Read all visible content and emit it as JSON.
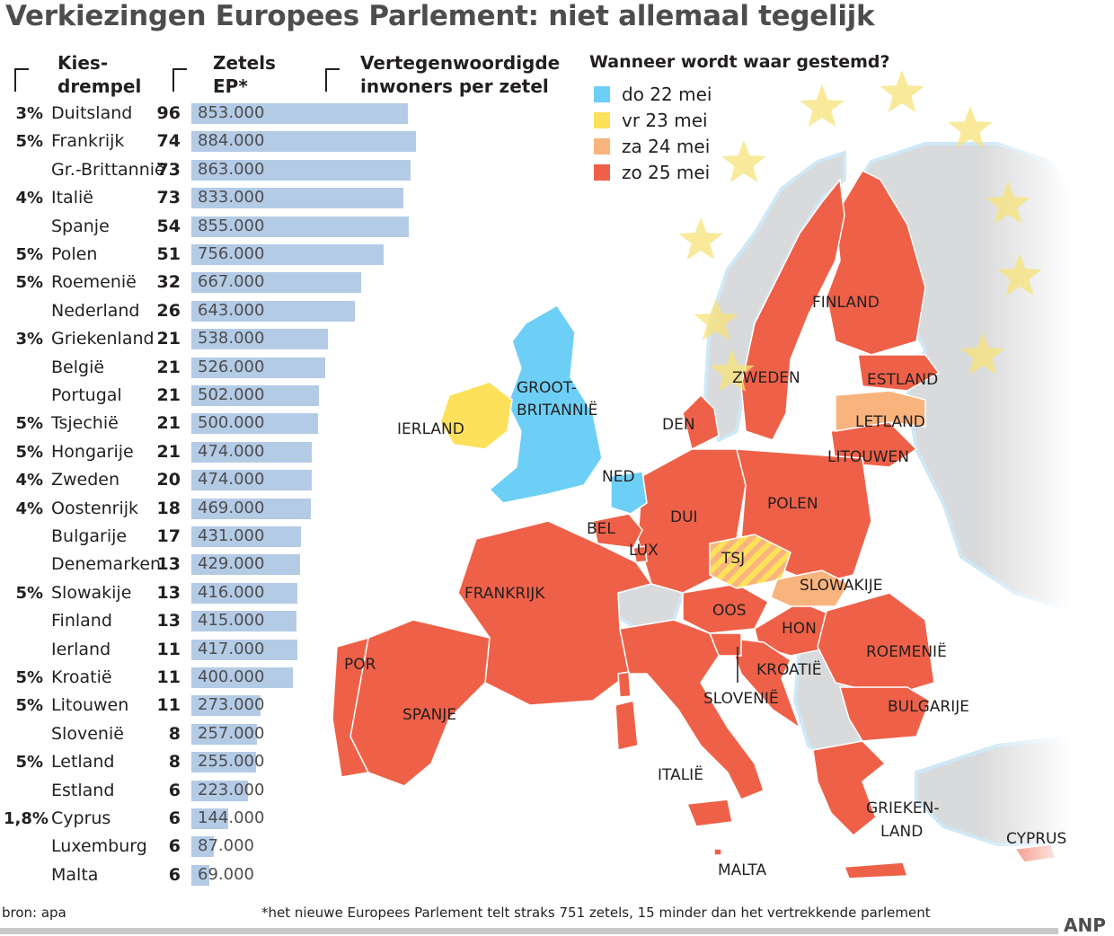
{
  "title": "Verkiezingen Europees Parlement: niet allemaal tegelijk",
  "headers": {
    "threshold": [
      "Kies-",
      "drempel"
    ],
    "seats": [
      "Zetels",
      "EP*"
    ],
    "inhabitants": [
      "Vertegenwoordigde",
      "inwoners per zetel"
    ]
  },
  "legend": {
    "title": "Wanneer wordt waar gestemd?",
    "items": [
      {
        "label": "do 22 mei",
        "color": "#6dcff6"
      },
      {
        "label": "vr  23 mei",
        "color": "#fde15b"
      },
      {
        "label": "za 24 mei",
        "color": "#f9b47e"
      },
      {
        "label": "zo 25 mei",
        "color": "#ee6148"
      }
    ]
  },
  "chart_data": {
    "type": "bar",
    "orientation": "horizontal",
    "title": "Verkiezingen Europees Parlement: niet allemaal tegelijk",
    "xlim": [
      0,
      884000
    ],
    "rows": [
      {
        "threshold": "3%",
        "country": "Duitsland",
        "seats": 96,
        "inhabitants": 853000,
        "label": "853.000"
      },
      {
        "threshold": "5%",
        "country": "Frankrijk",
        "seats": 74,
        "inhabitants": 884000,
        "label": "884.000"
      },
      {
        "threshold": "",
        "country": "Gr.-Brittannië",
        "seats": 73,
        "inhabitants": 863000,
        "label": "863.000"
      },
      {
        "threshold": "4%",
        "country": "Italië",
        "seats": 73,
        "inhabitants": 833000,
        "label": "833.000"
      },
      {
        "threshold": "",
        "country": "Spanje",
        "seats": 54,
        "inhabitants": 855000,
        "label": "855.000"
      },
      {
        "threshold": "5%",
        "country": "Polen",
        "seats": 51,
        "inhabitants": 756000,
        "label": "756.000"
      },
      {
        "threshold": "5%",
        "country": "Roemenië",
        "seats": 32,
        "inhabitants": 667000,
        "label": "667.000"
      },
      {
        "threshold": "",
        "country": "Nederland",
        "seats": 26,
        "inhabitants": 643000,
        "label": "643.000"
      },
      {
        "threshold": "3%",
        "country": "Griekenland",
        "seats": 21,
        "inhabitants": 538000,
        "label": "538.000"
      },
      {
        "threshold": "",
        "country": "België",
        "seats": 21,
        "inhabitants": 526000,
        "label": "526.000"
      },
      {
        "threshold": "",
        "country": "Portugal",
        "seats": 21,
        "inhabitants": 502000,
        "label": "502.000"
      },
      {
        "threshold": "5%",
        "country": "Tsjechië",
        "seats": 21,
        "inhabitants": 500000,
        "label": "500.000"
      },
      {
        "threshold": "5%",
        "country": "Hongarije",
        "seats": 21,
        "inhabitants": 474000,
        "label": "474.000"
      },
      {
        "threshold": "4%",
        "country": "Zweden",
        "seats": 20,
        "inhabitants": 474000,
        "label": "474.000"
      },
      {
        "threshold": "4%",
        "country": "Oostenrijk",
        "seats": 18,
        "inhabitants": 469000,
        "label": "469.000"
      },
      {
        "threshold": "",
        "country": "Bulgarije",
        "seats": 17,
        "inhabitants": 431000,
        "label": "431.000"
      },
      {
        "threshold": "",
        "country": "Denemarken",
        "seats": 13,
        "inhabitants": 429000,
        "label": "429.000"
      },
      {
        "threshold": "5%",
        "country": "Slowakije",
        "seats": 13,
        "inhabitants": 416000,
        "label": "416.000"
      },
      {
        "threshold": "",
        "country": "Finland",
        "seats": 13,
        "inhabitants": 415000,
        "label": "415.000"
      },
      {
        "threshold": "",
        "country": "Ierland",
        "seats": 11,
        "inhabitants": 417000,
        "label": "417.000"
      },
      {
        "threshold": "5%",
        "country": "Kroatië",
        "seats": 11,
        "inhabitants": 400000,
        "label": "400.000"
      },
      {
        "threshold": "5%",
        "country": "Litouwen",
        "seats": 11,
        "inhabitants": 273000,
        "label": "273.000"
      },
      {
        "threshold": "",
        "country": "Slovenië",
        "seats": 8,
        "inhabitants": 257000,
        "label": "257.000"
      },
      {
        "threshold": "5%",
        "country": "Letland",
        "seats": 8,
        "inhabitants": 255000,
        "label": "255.000"
      },
      {
        "threshold": "",
        "country": "Estland",
        "seats": 6,
        "inhabitants": 223000,
        "label": "223.000"
      },
      {
        "threshold": "1,8%",
        "country": "Cyprus",
        "seats": 6,
        "inhabitants": 144000,
        "label": "144.000"
      },
      {
        "threshold": "",
        "country": "Luxemburg",
        "seats": 6,
        "inhabitants": 87000,
        "label": "87.000"
      },
      {
        "threshold": "",
        "country": "Malta",
        "seats": 6,
        "inhabitants": 69000,
        "label": "69.000"
      }
    ]
  },
  "map_labels": [
    {
      "text": "FINLAND",
      "date": "zo 25 mei"
    },
    {
      "text": "ZWEDEN",
      "date": "zo 25 mei"
    },
    {
      "text": "ESTLAND",
      "date": "zo 25 mei"
    },
    {
      "text": "LETLAND",
      "date": "za 24 mei"
    },
    {
      "text": "LITOUWEN",
      "date": "zo 25 mei"
    },
    {
      "text": "GROOT-",
      "date": "do 22 mei"
    },
    {
      "text": "BRITANNIË",
      "date": "do 22 mei"
    },
    {
      "text": "IERLAND",
      "date": "vr  23 mei"
    },
    {
      "text": "DEN",
      "date": "zo 25 mei"
    },
    {
      "text": "NED",
      "date": "do 22 mei"
    },
    {
      "text": "BEL",
      "date": "zo 25 mei"
    },
    {
      "text": "LUX",
      "date": "zo 25 mei"
    },
    {
      "text": "DUI",
      "date": "zo 25 mei"
    },
    {
      "text": "POLEN",
      "date": "zo 25 mei"
    },
    {
      "text": "TSJ",
      "date": "vr  23 mei"
    },
    {
      "text": "SLOWAKIJE",
      "date": "za 24 mei"
    },
    {
      "text": "FRANKRIJK",
      "date": "zo 25 mei"
    },
    {
      "text": "OOS",
      "date": "zo 25 mei"
    },
    {
      "text": "HON",
      "date": "zo 25 mei"
    },
    {
      "text": "ROEMENIË",
      "date": "zo 25 mei"
    },
    {
      "text": "POR",
      "date": "zo 25 mei"
    },
    {
      "text": "KROATIË",
      "date": "zo 25 mei"
    },
    {
      "text": "SPANJE",
      "date": "zo 25 mei"
    },
    {
      "text": "SLOVENIË",
      "date": "zo 25 mei"
    },
    {
      "text": "BULGARIJE",
      "date": "zo 25 mei"
    },
    {
      "text": "ITALIË",
      "date": "zo 25 mei"
    },
    {
      "text": "GRIEKEN-",
      "date": "zo 25 mei"
    },
    {
      "text": "LAND",
      "date": "zo 25 mei"
    },
    {
      "text": "CYPRUS",
      "date": "zo 25 mei"
    },
    {
      "text": "MALTA",
      "date": "zo 25 mei"
    }
  ],
  "colors": {
    "bar": "#b4cbe6",
    "non_eu": "#d9dadb",
    "sea_outline": "#cfe8f6",
    "stars": "#f7e37a"
  },
  "source": "bron: apa",
  "footnote": "*het nieuwe Europees Parlement telt straks 751 zetels, 15 minder dan het vertrekkende parlement",
  "brand": "ANP"
}
